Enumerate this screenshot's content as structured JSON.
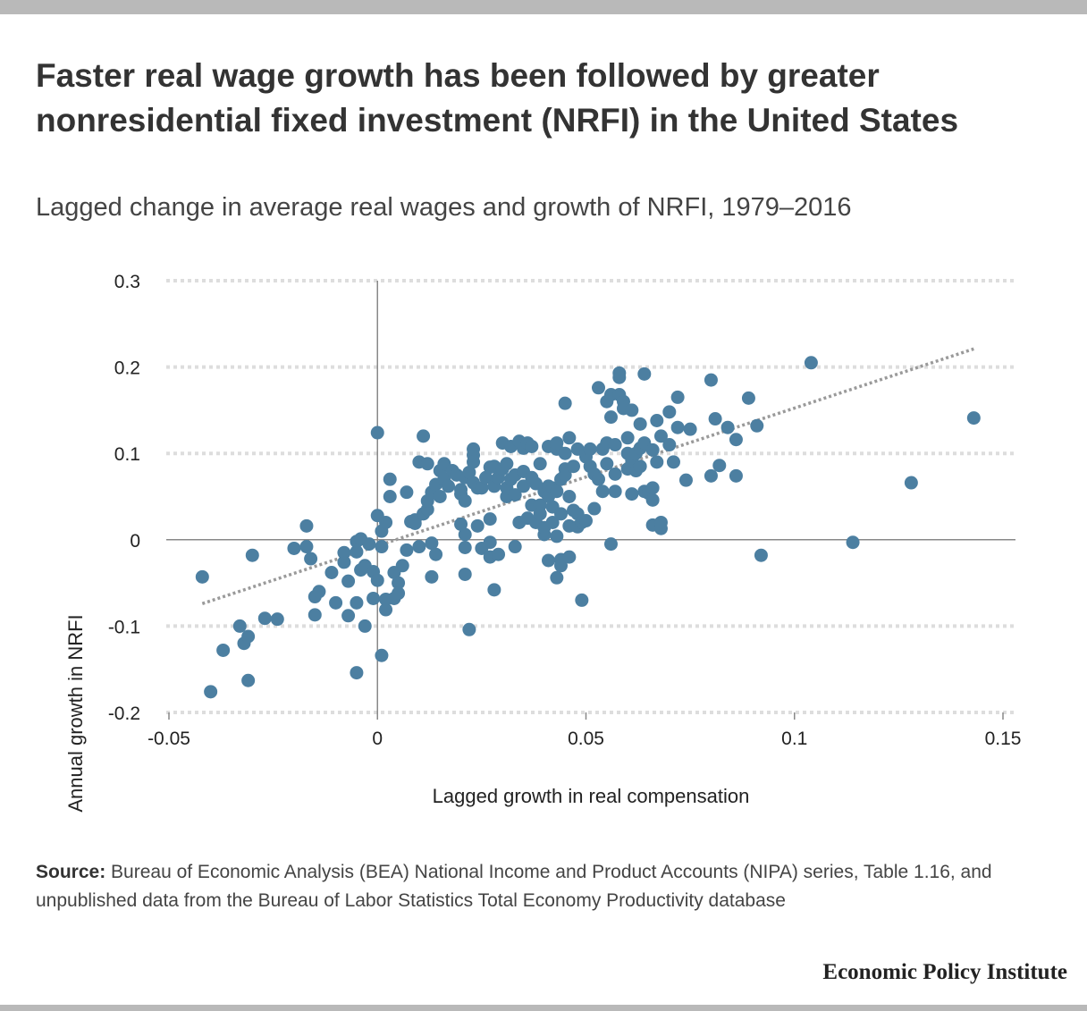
{
  "title": "Faster real wage growth has been followed by greater nonresidential fixed investment (NRFI) in the United States",
  "subtitle": "Lagged change in average real wages and growth of NRFI, 1979–2016",
  "source": {
    "label": "Source:",
    "text": "Bureau of Economic Analysis (BEA) National Income and Product Accounts (NIPA) series, Table 1.16, and unpublished data from the Bureau of Labor Statistics Total Economy Productivity database"
  },
  "brand": "Economic Policy Institute",
  "colors": {
    "point": "#4c7fa1",
    "trend": "#9a9a9a",
    "grid": "#dddddd",
    "axis": "#888888"
  },
  "chart_data": {
    "type": "scatter",
    "xlabel": "Lagged growth in real compensation",
    "ylabel": "Annual growth in NRFI",
    "xlim": [
      -0.05,
      0.15
    ],
    "ylim": [
      -0.2,
      0.3
    ],
    "x_ticks": [
      -0.05,
      0,
      0.05,
      0.1,
      0.15
    ],
    "x_tick_labels": [
      "-0.05",
      "0",
      "0.05",
      "0.1",
      "0.15"
    ],
    "y_ticks": [
      0.3,
      0.2,
      0.1,
      0,
      -0.1,
      -0.2
    ],
    "y_tick_labels": [
      "0.3",
      "0.2",
      "0.1",
      "0",
      "-0.1",
      "-0.2"
    ],
    "grid": "horizontal-dotted",
    "trendline": {
      "x": [
        -0.042,
        0.143
      ],
      "y": [
        -0.074,
        0.221
      ],
      "style": "dotted"
    },
    "points": [
      [
        -0.042,
        -0.043
      ],
      [
        -0.04,
        -0.176
      ],
      [
        -0.037,
        -0.128
      ],
      [
        -0.033,
        -0.1
      ],
      [
        -0.032,
        -0.12
      ],
      [
        -0.031,
        -0.163
      ],
      [
        -0.031,
        -0.112
      ],
      [
        -0.03,
        -0.018
      ],
      [
        -0.027,
        -0.091
      ],
      [
        -0.024,
        -0.092
      ],
      [
        -0.02,
        -0.01
      ],
      [
        -0.017,
        0.016
      ],
      [
        -0.017,
        -0.008
      ],
      [
        -0.016,
        -0.022
      ],
      [
        -0.015,
        -0.087
      ],
      [
        -0.015,
        -0.066
      ],
      [
        -0.014,
        -0.06
      ],
      [
        -0.011,
        -0.038
      ],
      [
        -0.01,
        -0.073
      ],
      [
        -0.008,
        -0.026
      ],
      [
        -0.008,
        -0.015
      ],
      [
        -0.007,
        -0.048
      ],
      [
        -0.007,
        -0.088
      ],
      [
        -0.005,
        -0.014
      ],
      [
        -0.005,
        -0.002
      ],
      [
        -0.005,
        -0.073
      ],
      [
        -0.005,
        -0.154
      ],
      [
        -0.004,
        0.001
      ],
      [
        -0.004,
        -0.035
      ],
      [
        -0.003,
        -0.1
      ],
      [
        -0.003,
        -0.03
      ],
      [
        -0.002,
        -0.005
      ],
      [
        -0.001,
        -0.037
      ],
      [
        -0.001,
        -0.068
      ],
      [
        0.0,
        -0.047
      ],
      [
        0.0,
        0.124
      ],
      [
        0.0,
        0.028
      ],
      [
        0.001,
        -0.008
      ],
      [
        0.001,
        0.01
      ],
      [
        0.001,
        -0.134
      ],
      [
        0.002,
        -0.069
      ],
      [
        0.002,
        0.02
      ],
      [
        0.002,
        -0.081
      ],
      [
        0.003,
        0.05
      ],
      [
        0.003,
        0.07
      ],
      [
        0.004,
        -0.068
      ],
      [
        0.004,
        -0.038
      ],
      [
        0.005,
        -0.05
      ],
      [
        0.005,
        -0.062
      ],
      [
        0.006,
        -0.03
      ],
      [
        0.007,
        0.055
      ],
      [
        0.007,
        -0.012
      ],
      [
        0.008,
        0.021
      ],
      [
        0.009,
        0.023
      ],
      [
        0.009,
        0.019
      ],
      [
        0.01,
        -0.008
      ],
      [
        0.01,
        0.09
      ],
      [
        0.011,
        0.03
      ],
      [
        0.011,
        0.12
      ],
      [
        0.012,
        0.088
      ],
      [
        0.012,
        0.035
      ],
      [
        0.012,
        0.045
      ],
      [
        0.013,
        0.055
      ],
      [
        0.013,
        -0.004
      ],
      [
        0.013,
        -0.043
      ],
      [
        0.014,
        0.064
      ],
      [
        0.014,
        -0.017
      ],
      [
        0.015,
        0.05
      ],
      [
        0.015,
        0.08
      ],
      [
        0.016,
        0.07
      ],
      [
        0.016,
        0.088
      ],
      [
        0.017,
        0.062
      ],
      [
        0.018,
        0.08
      ],
      [
        0.019,
        0.075
      ],
      [
        0.02,
        0.058
      ],
      [
        0.02,
        0.053
      ],
      [
        0.02,
        0.018
      ],
      [
        0.021,
        0.072
      ],
      [
        0.021,
        0.006
      ],
      [
        0.021,
        -0.04
      ],
      [
        0.021,
        -0.009
      ],
      [
        0.021,
        0.045
      ],
      [
        0.022,
        0.078
      ],
      [
        0.022,
        -0.104
      ],
      [
        0.023,
        0.066
      ],
      [
        0.023,
        0.09
      ],
      [
        0.023,
        0.098
      ],
      [
        0.023,
        0.105
      ],
      [
        0.024,
        0.016
      ],
      [
        0.024,
        0.06
      ],
      [
        0.025,
        -0.01
      ],
      [
        0.025,
        0.06
      ],
      [
        0.026,
        0.072
      ],
      [
        0.027,
        0.084
      ],
      [
        0.027,
        -0.02
      ],
      [
        0.027,
        -0.003
      ],
      [
        0.027,
        0.024
      ],
      [
        0.028,
        0.085
      ],
      [
        0.028,
        0.062
      ],
      [
        0.028,
        -0.058
      ],
      [
        0.029,
        -0.017
      ],
      [
        0.029,
        0.072
      ],
      [
        0.03,
        0.082
      ],
      [
        0.03,
        0.112
      ],
      [
        0.031,
        0.05
      ],
      [
        0.031,
        0.088
      ],
      [
        0.031,
        0.06
      ],
      [
        0.032,
        0.108
      ],
      [
        0.032,
        0.07
      ],
      [
        0.033,
        0.052
      ],
      [
        0.033,
        -0.008
      ],
      [
        0.033,
        0.075
      ],
      [
        0.034,
        0.114
      ],
      [
        0.034,
        0.02
      ],
      [
        0.035,
        0.062
      ],
      [
        0.035,
        0.106
      ],
      [
        0.035,
        0.079
      ],
      [
        0.036,
        0.112
      ],
      [
        0.036,
        0.025
      ],
      [
        0.037,
        0.072
      ],
      [
        0.037,
        0.04
      ],
      [
        0.037,
        0.108
      ],
      [
        0.038,
        0.02
      ],
      [
        0.038,
        0.065
      ],
      [
        0.039,
        0.088
      ],
      [
        0.039,
        0.04
      ],
      [
        0.039,
        0.03
      ],
      [
        0.04,
        0.006
      ],
      [
        0.04,
        0.056
      ],
      [
        0.04,
        0.014
      ],
      [
        0.041,
        0.062
      ],
      [
        0.041,
        0.108
      ],
      [
        0.041,
        0.05
      ],
      [
        0.041,
        -0.024
      ],
      [
        0.042,
        0.038
      ],
      [
        0.042,
        0.02
      ],
      [
        0.042,
        0.06
      ],
      [
        0.043,
        0.004
      ],
      [
        0.043,
        0.105
      ],
      [
        0.043,
        0.112
      ],
      [
        0.043,
        0.056
      ],
      [
        0.043,
        -0.044
      ],
      [
        0.044,
        -0.023
      ],
      [
        0.044,
        0.07
      ],
      [
        0.044,
        0.03
      ],
      [
        0.044,
        -0.03
      ],
      [
        0.045,
        0.082
      ],
      [
        0.045,
        0.075
      ],
      [
        0.045,
        0.158
      ],
      [
        0.045,
        0.1
      ],
      [
        0.046,
        0.016
      ],
      [
        0.046,
        0.05
      ],
      [
        0.046,
        -0.02
      ],
      [
        0.046,
        0.118
      ],
      [
        0.047,
        0.085
      ],
      [
        0.047,
        0.034
      ],
      [
        0.048,
        0.015
      ],
      [
        0.048,
        0.03
      ],
      [
        0.048,
        0.105
      ],
      [
        0.049,
        0.02
      ],
      [
        0.049,
        -0.07
      ],
      [
        0.05,
        0.096
      ],
      [
        0.05,
        0.022
      ],
      [
        0.051,
        0.085
      ],
      [
        0.051,
        0.105
      ],
      [
        0.052,
        0.076
      ],
      [
        0.052,
        0.036
      ],
      [
        0.053,
        0.07
      ],
      [
        0.053,
        0.176
      ],
      [
        0.054,
        0.105
      ],
      [
        0.054,
        0.056
      ],
      [
        0.055,
        0.16
      ],
      [
        0.055,
        0.088
      ],
      [
        0.055,
        0.112
      ],
      [
        0.056,
        0.142
      ],
      [
        0.056,
        0.168
      ],
      [
        0.056,
        -0.005
      ],
      [
        0.057,
        0.056
      ],
      [
        0.057,
        0.11
      ],
      [
        0.057,
        0.076
      ],
      [
        0.058,
        0.188
      ],
      [
        0.058,
        0.193
      ],
      [
        0.058,
        0.168
      ],
      [
        0.059,
        0.16
      ],
      [
        0.059,
        0.152
      ],
      [
        0.06,
        0.1
      ],
      [
        0.06,
        0.082
      ],
      [
        0.06,
        0.118
      ],
      [
        0.061,
        0.053
      ],
      [
        0.061,
        0.15
      ],
      [
        0.061,
        0.092
      ],
      [
        0.062,
        0.08
      ],
      [
        0.062,
        0.1
      ],
      [
        0.063,
        0.085
      ],
      [
        0.063,
        0.134
      ],
      [
        0.063,
        0.106
      ],
      [
        0.064,
        0.056
      ],
      [
        0.064,
        0.112
      ],
      [
        0.064,
        0.192
      ],
      [
        0.065,
        0.054
      ],
      [
        0.066,
        0.104
      ],
      [
        0.066,
        0.017
      ],
      [
        0.066,
        0.046
      ],
      [
        0.066,
        0.06
      ],
      [
        0.067,
        0.09
      ],
      [
        0.067,
        0.138
      ],
      [
        0.068,
        0.12
      ],
      [
        0.068,
        0.013
      ],
      [
        0.068,
        0.02
      ],
      [
        0.07,
        0.11
      ],
      [
        0.07,
        0.148
      ],
      [
        0.071,
        0.09
      ],
      [
        0.072,
        0.165
      ],
      [
        0.072,
        0.13
      ],
      [
        0.074,
        0.069
      ],
      [
        0.075,
        0.128
      ],
      [
        0.08,
        0.185
      ],
      [
        0.08,
        0.074
      ],
      [
        0.081,
        0.14
      ],
      [
        0.082,
        0.086
      ],
      [
        0.084,
        0.13
      ],
      [
        0.086,
        0.074
      ],
      [
        0.086,
        0.116
      ],
      [
        0.089,
        0.164
      ],
      [
        0.091,
        0.132
      ],
      [
        0.092,
        -0.018
      ],
      [
        0.104,
        0.205
      ],
      [
        0.114,
        -0.003
      ],
      [
        0.128,
        0.066
      ],
      [
        0.143,
        0.141
      ]
    ]
  }
}
